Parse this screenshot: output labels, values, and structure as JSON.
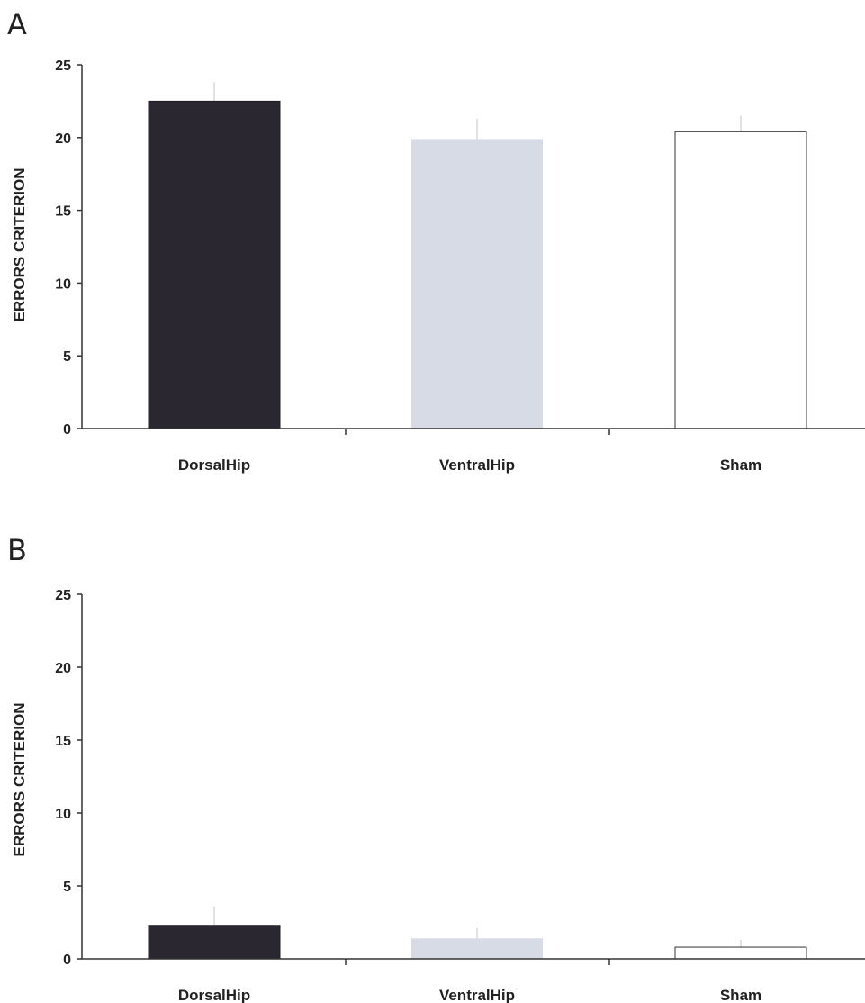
{
  "chart_data": [
    {
      "type": "bar",
      "panel": "A",
      "categories": [
        "DorsalHip",
        "VentralHip",
        "Sham"
      ],
      "values": [
        22.5,
        19.9,
        20.4
      ],
      "errors": [
        1.3,
        1.4,
        1.1
      ],
      "colors": [
        "#2a2730",
        "#d6dbe6",
        "#ffffff"
      ],
      "ylabel": "ERRORS CRITERION",
      "ylim": [
        0,
        25
      ],
      "yticks": [
        0,
        5,
        10,
        15,
        20,
        25
      ]
    },
    {
      "type": "bar",
      "panel": "B",
      "categories": [
        "DorsalHip",
        "VentralHip",
        "Sham"
      ],
      "values": [
        2.3,
        1.4,
        0.8
      ],
      "errors": [
        1.3,
        0.7,
        0.5
      ],
      "colors": [
        "#2a2730",
        "#d6dbe6",
        "#ffffff"
      ],
      "ylabel": "ERRORS CRITERION",
      "ylim": [
        0,
        25
      ],
      "yticks": [
        0,
        5,
        10,
        15,
        20,
        25
      ]
    }
  ]
}
